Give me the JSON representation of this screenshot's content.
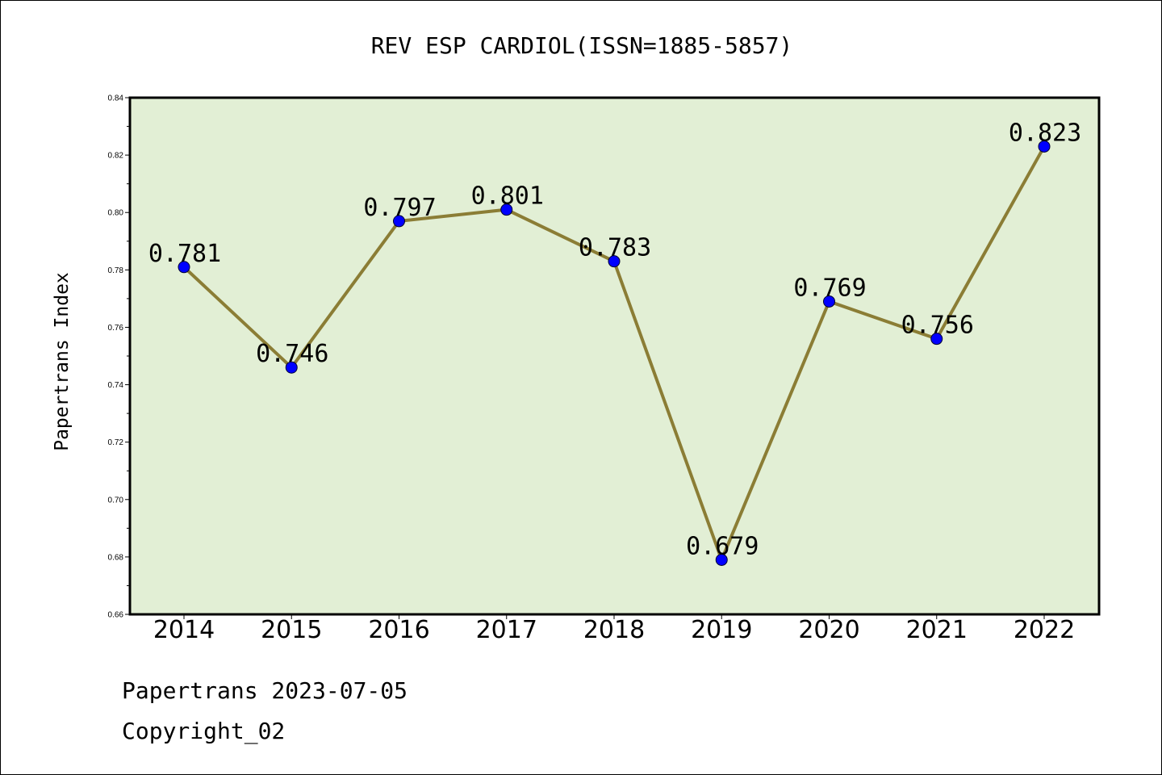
{
  "chart_data": {
    "type": "line",
    "title": "REV ESP CARDIOL(ISSN=1885-5857)",
    "ylabel": "Papertrans Index",
    "xlabel": "",
    "categories": [
      "2014",
      "2015",
      "2016",
      "2017",
      "2018",
      "2019",
      "2020",
      "2021",
      "2022"
    ],
    "series": [
      {
        "values": [
          0.781,
          0.746,
          0.797,
          0.801,
          0.783,
          0.679,
          0.769,
          0.756,
          0.823
        ]
      }
    ],
    "data_labels": [
      "0.781",
      "0.746",
      "0.797",
      "0.801",
      "0.783",
      "0.679",
      "0.769",
      "0.756",
      "0.823"
    ],
    "ylim": [
      0.66,
      0.84
    ],
    "yticks": [
      "0.66",
      "0.68",
      "0.70",
      "0.72",
      "0.74",
      "0.76",
      "0.78",
      "0.80",
      "0.82",
      "0.84"
    ],
    "grid": false,
    "colors": {
      "plot_background": "#e2efd5",
      "line": "#8b7d35",
      "marker": "#0000ff"
    }
  },
  "footer": {
    "line1": "Papertrans 2023-07-05",
    "line2": "Copyright_02"
  }
}
